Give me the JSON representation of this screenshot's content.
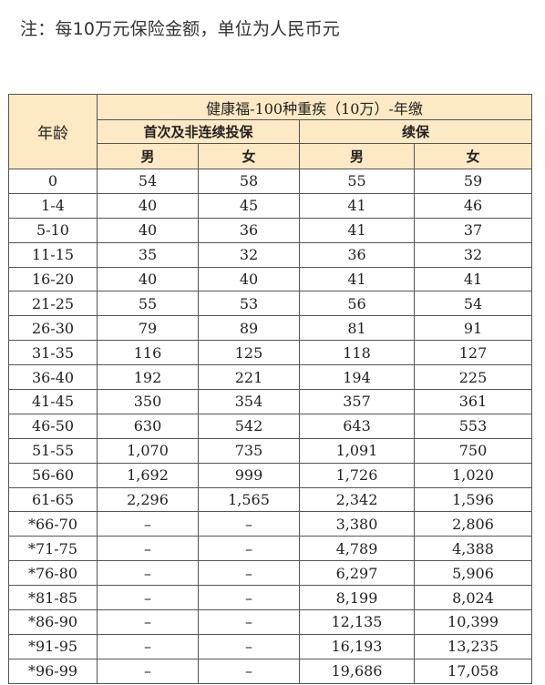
{
  "note": "注：每10万元保险金额，单位为人民币元",
  "table": {
    "title": "健康福-100种重疾（10万）-年缴",
    "age_header": "年龄",
    "group_first": "首次及非连续投保",
    "group_renew": "续保",
    "male": "男",
    "female": "女",
    "rows": [
      {
        "age": "0",
        "first_m": "54",
        "first_f": "58",
        "renew_m": "55",
        "renew_f": "59"
      },
      {
        "age": "1-4",
        "first_m": "40",
        "first_f": "45",
        "renew_m": "41",
        "renew_f": "46"
      },
      {
        "age": "5-10",
        "first_m": "40",
        "first_f": "36",
        "renew_m": "41",
        "renew_f": "37"
      },
      {
        "age": "11-15",
        "first_m": "35",
        "first_f": "32",
        "renew_m": "36",
        "renew_f": "32"
      },
      {
        "age": "16-20",
        "first_m": "40",
        "first_f": "40",
        "renew_m": "41",
        "renew_f": "41"
      },
      {
        "age": "21-25",
        "first_m": "55",
        "first_f": "53",
        "renew_m": "56",
        "renew_f": "54"
      },
      {
        "age": "26-30",
        "first_m": "79",
        "first_f": "89",
        "renew_m": "81",
        "renew_f": "91"
      },
      {
        "age": "31-35",
        "first_m": "116",
        "first_f": "125",
        "renew_m": "118",
        "renew_f": "127"
      },
      {
        "age": "36-40",
        "first_m": "192",
        "first_f": "221",
        "renew_m": "194",
        "renew_f": "225"
      },
      {
        "age": "41-45",
        "first_m": "350",
        "first_f": "354",
        "renew_m": "357",
        "renew_f": "361"
      },
      {
        "age": "46-50",
        "first_m": "630",
        "first_f": "542",
        "renew_m": "643",
        "renew_f": "553"
      },
      {
        "age": "51-55",
        "first_m": "1,070",
        "first_f": "735",
        "renew_m": "1,091",
        "renew_f": "750"
      },
      {
        "age": "56-60",
        "first_m": "1,692",
        "first_f": "999",
        "renew_m": "1,726",
        "renew_f": "1,020"
      },
      {
        "age": "61-65",
        "first_m": "2,296",
        "first_f": "1,565",
        "renew_m": "2,342",
        "renew_f": "1,596"
      },
      {
        "age": "*66-70",
        "first_m": "–",
        "first_f": "–",
        "renew_m": "3,380",
        "renew_f": "2,806"
      },
      {
        "age": "*71-75",
        "first_m": "–",
        "first_f": "–",
        "renew_m": "4,789",
        "renew_f": "4,388"
      },
      {
        "age": "*76-80",
        "first_m": "–",
        "first_f": "–",
        "renew_m": "6,297",
        "renew_f": "5,906"
      },
      {
        "age": "*81-85",
        "first_m": "–",
        "first_f": "–",
        "renew_m": "8,199",
        "renew_f": "8,024"
      },
      {
        "age": "*86-90",
        "first_m": "–",
        "first_f": "–",
        "renew_m": "12,135",
        "renew_f": "10,399"
      },
      {
        "age": "*91-95",
        "first_m": "–",
        "first_f": "–",
        "renew_m": "16,193",
        "renew_f": "13,235"
      },
      {
        "age": "*96-99",
        "first_m": "–",
        "first_f": "–",
        "renew_m": "19,686",
        "renew_f": "17,058"
      }
    ]
  },
  "colors": {
    "header_bg": "#fde9c3",
    "border": "#555555"
  }
}
